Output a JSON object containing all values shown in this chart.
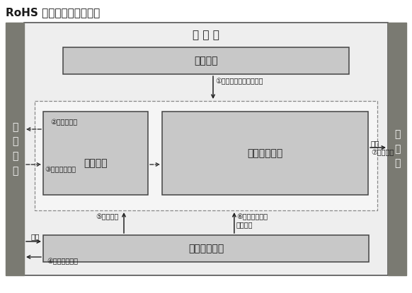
{
  "title": "RoHS 指令適合への枠組み",
  "bg_color": "#ffffff",
  "dept_box_color": "#c8c8c8",
  "side_bar_color": "#7a7a72",
  "fujitsu_bg": "#ebebeb",
  "inner_dashed_bg": "#f5f5f5",
  "side_bar_left_text": "お\n取\n引\n先",
  "side_bar_right_text": "お\n客\n様",
  "fujitsu_label": "富 士 通",
  "env_dept": "環境部門",
  "purchase_dept": "購買部門",
  "product_dept": "製品事業部門",
  "quality_dept": "品質保証部門",
  "arrow1_label": "①方針策定／枠組み確認",
  "arrow2_label": "②非含有要求",
  "arrow3_label": "③適合証明取得",
  "arrow4_label": "④お取引先監査",
  "arrow5_label": "⑤受入検査",
  "arrow6_label": "⑥社内製造工場\n定期監査",
  "arrow7_label": "⑦出荷判定",
  "shipment_label": "出荷",
  "delivery_label": "納入"
}
